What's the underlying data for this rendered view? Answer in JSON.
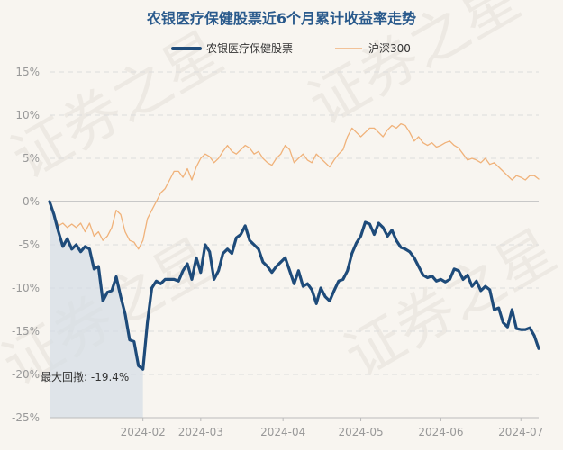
{
  "chart_data": {
    "type": "line",
    "title": "农银医疗保健股票近6个月累计收益率走势",
    "watermark": "证券之星",
    "colors": {
      "fund": "#1e4b7a",
      "index": "#f0b27a",
      "drawdown_fill": "#d4dde6",
      "grid": "#dddddd",
      "zero_line": "#c8c8c8",
      "background": "#f8f5f0"
    },
    "ylim": [
      -25,
      15
    ],
    "yticks": [
      "15%",
      "10%",
      "5%",
      "0%",
      "-5%",
      "-10%",
      "-15%",
      "-20%",
      "-25%"
    ],
    "ytick_values": [
      15,
      10,
      5,
      0,
      -5,
      -10,
      -15,
      -20,
      -25
    ],
    "x_range": [
      0,
      110
    ],
    "xticks": [
      "2024-02",
      "2024-03",
      "2024-04",
      "2024-05",
      "2024-06",
      "2024-07"
    ],
    "xtick_positions": [
      21,
      34,
      52.5,
      70,
      88,
      106
    ],
    "max_drawdown": {
      "label": "最大回撤: -19.4%",
      "start_index": 0,
      "end_index": 20
    },
    "series": [
      {
        "name": "农银医疗保健股票",
        "values": [
          0,
          -1.5,
          -3.5,
          -5.2,
          -4.3,
          -5.5,
          -5.0,
          -5.8,
          -5.2,
          -5.5,
          -7.8,
          -7.5,
          -11.5,
          -10.5,
          -10.3,
          -8.7,
          -11.0,
          -13.0,
          -16.0,
          -16.2,
          -19.0,
          -19.4,
          -14.0,
          -10.0,
          -9.2,
          -9.5,
          -9.0,
          -9.0,
          -9.0,
          -9.2,
          -8.0,
          -7.2,
          -9.0,
          -6.5,
          -8.2,
          -5.0,
          -5.8,
          -9.0,
          -8.0,
          -6.0,
          -5.5,
          -6.0,
          -4.2,
          -3.8,
          -2.8,
          -4.5,
          -5.0,
          -5.5,
          -7.0,
          -7.5,
          -8.2,
          -7.5,
          -7.0,
          -6.5,
          -8.0,
          -9.5,
          -8.0,
          -9.8,
          -9.5,
          -10.2,
          -11.8,
          -10.0,
          -11.0,
          -11.5,
          -10.3,
          -9.2,
          -9.0,
          -8.0,
          -6.0,
          -4.8,
          -4.0,
          -2.4,
          -2.6,
          -3.8,
          -2.5,
          -3.0,
          -4.0,
          -3.3,
          -4.5,
          -5.3,
          -5.5,
          -5.8,
          -6.5,
          -7.5,
          -8.5,
          -8.8,
          -8.6,
          -9.2,
          -9.0,
          -9.3,
          -9.0,
          -7.8,
          -8.0,
          -9.0,
          -8.5,
          -9.8,
          -9.2,
          -10.3,
          -9.8,
          -10.2,
          -12.5,
          -12.3,
          -14.0,
          -14.5,
          -12.5,
          -14.7,
          -14.8,
          -14.8,
          -14.6,
          -15.5,
          -17.0
        ]
      },
      {
        "name": "沪深300",
        "values": [
          0,
          -1.5,
          -2.8,
          -2.5,
          -3.0,
          -2.6,
          -3.0,
          -2.5,
          -3.5,
          -2.5,
          -4.0,
          -3.5,
          -4.5,
          -4.0,
          -3.0,
          -1.0,
          -1.5,
          -3.5,
          -4.5,
          -4.7,
          -5.5,
          -4.5,
          -2.0,
          -1.0,
          0.0,
          1.0,
          1.5,
          2.5,
          3.5,
          3.5,
          2.8,
          3.8,
          2.5,
          4.0,
          5.0,
          5.5,
          5.2,
          4.5,
          5.0,
          5.8,
          6.5,
          5.8,
          5.5,
          6.0,
          6.5,
          6.2,
          5.5,
          5.8,
          5.0,
          4.5,
          4.2,
          5.0,
          5.5,
          6.5,
          6.0,
          4.5,
          5.0,
          5.5,
          4.8,
          4.5,
          5.5,
          5.0,
          4.5,
          4.0,
          4.8,
          5.5,
          6.0,
          7.5,
          8.5,
          8.0,
          7.5,
          8.0,
          8.5,
          8.5,
          8.0,
          7.5,
          8.3,
          8.8,
          8.5,
          9.0,
          8.8,
          8.0,
          7.0,
          7.5,
          6.8,
          6.5,
          6.8,
          6.3,
          6.5,
          6.8,
          7.0,
          6.5,
          6.2,
          5.5,
          4.8,
          5.0,
          4.8,
          4.5,
          5.0,
          4.3,
          4.5,
          4.0,
          3.5,
          3.0,
          2.5,
          3.0,
          2.8,
          2.5,
          3.0,
          3.0,
          2.6
        ]
      }
    ]
  }
}
